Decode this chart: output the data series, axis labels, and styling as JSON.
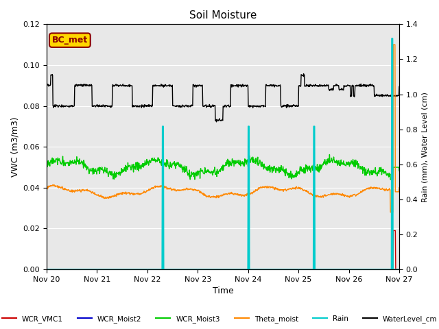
{
  "title": "Soil Moisture",
  "ylabel_left": "VWC (m3/m3)",
  "ylabel_right": "Rain (mm), Water Level (cm)",
  "xlabel": "Time",
  "xlim_days": [
    0,
    7
  ],
  "ylim_left": [
    0.0,
    0.12
  ],
  "ylim_right": [
    0.0,
    1.4
  ],
  "annotation_text": "BC_met",
  "annotation_color": "#8b0000",
  "annotation_bg": "#ffd700",
  "background_color": "#e8e8e8",
  "series": {
    "WCR_VMC1": {
      "color": "#cc0000",
      "lw": 1.0
    },
    "WCR_Moist2": {
      "color": "#0000cc",
      "lw": 1.0
    },
    "WCR_Moist3": {
      "color": "#00cc00",
      "lw": 1.0
    },
    "Theta_moist": {
      "color": "#ff8800",
      "lw": 1.0
    },
    "Rain": {
      "color": "#00cccc",
      "lw": 1.5
    },
    "WaterLevel_cm": {
      "color": "#000000",
      "lw": 1.0
    }
  },
  "x_tick_labels": [
    "Nov 20",
    "Nov 21",
    "Nov 22",
    "Nov 23",
    "Nov 24",
    "Nov 25",
    "Nov 26",
    "Nov 27"
  ],
  "x_tick_positions": [
    0,
    1,
    2,
    3,
    4,
    5,
    6,
    7
  ],
  "yticks_left": [
    0.0,
    0.02,
    0.04,
    0.06,
    0.08,
    0.1,
    0.12
  ],
  "yticks_right": [
    0.0,
    0.2,
    0.4,
    0.6,
    0.8,
    1.0,
    1.2,
    1.4
  ],
  "wl_high": 0.09,
  "wl_low": 0.08,
  "scale_lr": 0.08571
}
